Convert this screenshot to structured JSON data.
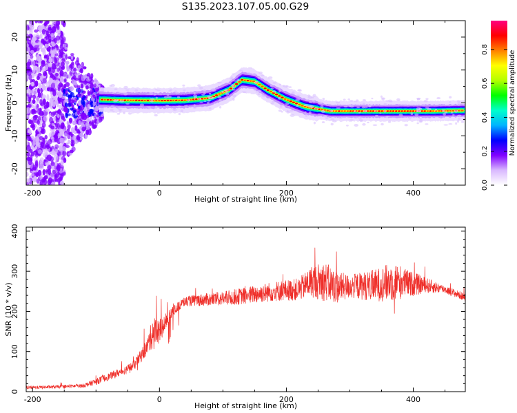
{
  "title": "S135.2023.107.05.00.G29",
  "chart_data": [
    {
      "type": "heatmap",
      "xlabel": "Height of straight line (km)",
      "ylabel": "Frequency (Hz)",
      "xlim": [
        -210,
        482
      ],
      "ylim": [
        -25,
        25
      ],
      "xticks": [
        -200,
        0,
        200,
        400
      ],
      "yticks": [
        -20,
        -10,
        0,
        10,
        20
      ],
      "colorbar": {
        "label": "Normalized spectral amplitude",
        "range": [
          0,
          0.97
        ],
        "ticks": [
          0.0,
          0.2,
          0.4,
          0.6,
          0.8
        ],
        "colors": [
          "#ffffff",
          "#d9b8ff",
          "#8000ff",
          "#0000ff",
          "#00b4ff",
          "#00ffcc",
          "#00ff00",
          "#b4ff00",
          "#ffff00",
          "#ff8000",
          "#ff0000",
          "#ff0080"
        ]
      },
      "ridge": {
        "x": [
          -90,
          -60,
          0,
          40,
          80,
          110,
          130,
          150,
          170,
          200,
          230,
          270,
          350,
          430,
          482
        ],
        "frequency": [
          1.0,
          0.8,
          0.7,
          0.8,
          1.5,
          4.0,
          7.0,
          6.5,
          4.0,
          1.0,
          -1.2,
          -2.5,
          -2.5,
          -2.5,
          -2.3
        ]
      }
    },
    {
      "type": "line",
      "xlabel": "Height of straight line (km)",
      "ylabel": "SNR (10 * v/v)",
      "xlim": [
        -210,
        482
      ],
      "ylim": [
        0,
        410
      ],
      "xticks": [
        -200,
        0,
        200,
        400
      ],
      "yticks": [
        0,
        100,
        200,
        300,
        400
      ],
      "color": "#ef2f2a",
      "envelope": {
        "x": [
          -210,
          -160,
          -120,
          -100,
          -60,
          -40,
          -20,
          -10,
          0,
          10,
          20,
          40,
          60,
          100,
          140,
          180,
          220,
          240,
          260,
          280,
          300,
          340,
          370,
          390,
          420,
          450,
          482
        ],
        "values": [
          10,
          12,
          15,
          25,
          50,
          65,
          110,
          150,
          150,
          175,
          200,
          225,
          228,
          232,
          240,
          250,
          255,
          275,
          275,
          260,
          262,
          265,
          275,
          270,
          265,
          255,
          235
        ],
        "amplitude": [
          4,
          4,
          5,
          8,
          10,
          12,
          20,
          40,
          30,
          20,
          12,
          12,
          15,
          18,
          22,
          25,
          28,
          40,
          50,
          40,
          30,
          40,
          50,
          35,
          20,
          10,
          10
        ]
      }
    }
  ]
}
